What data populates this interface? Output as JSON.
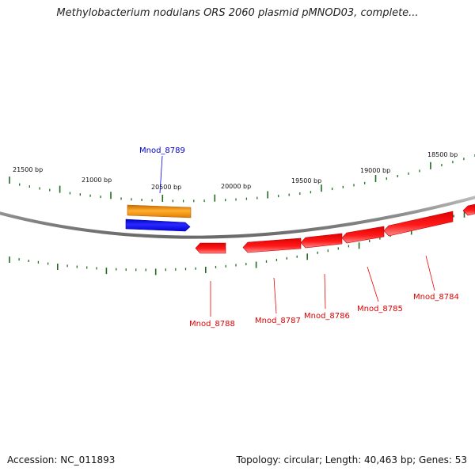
{
  "title": "Methylobacterium nodulans ORS 2060 plasmid pMNOD03, complete...",
  "footer": {
    "accession": "Accession: NC_011893",
    "summary": "Topology: circular; Length: 40,463 bp; Genes: 53"
  },
  "colors": {
    "forward_gene": "#0000ee",
    "reverse_gene": "#ee0000",
    "other_feature": "#f08c00",
    "tick": "#1e6e1e",
    "backbone": "#8a8a8a"
  },
  "tick_labels": [
    "21500 bp",
    "21000 bp",
    "20500 bp",
    "20000 bp",
    "19500 bp",
    "19000 bp",
    "18500 bp"
  ],
  "genes": [
    {
      "name": "Mnod_8789",
      "strand": "forward"
    },
    {
      "name": "Mnod_8788",
      "strand": "reverse"
    },
    {
      "name": "Mnod_8787",
      "strand": "reverse"
    },
    {
      "name": "Mnod_8786",
      "strand": "reverse"
    },
    {
      "name": "Mnod_8785",
      "strand": "reverse"
    },
    {
      "name": "Mnod_8784",
      "strand": "reverse"
    }
  ]
}
